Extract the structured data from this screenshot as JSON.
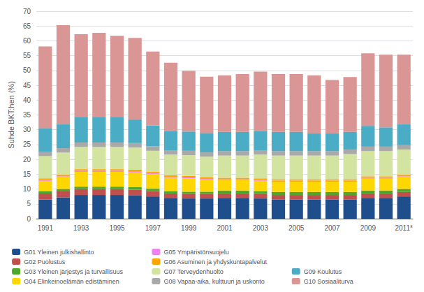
{
  "chart_data": {
    "type": "bar",
    "stacked": true,
    "grid": true,
    "legend": "bottom",
    "y_label": "Suhde BKT:hen (%)",
    "categories": [
      "1991",
      null,
      "1993",
      null,
      "1995",
      null,
      "1997",
      null,
      "1999",
      null,
      "2001",
      null,
      "2003",
      null,
      "2005",
      null,
      "2007",
      null,
      "2009",
      null,
      "2011*"
    ],
    "ylim": [
      0,
      70
    ],
    "yticks": [
      0,
      5,
      10,
      15,
      20,
      25,
      30,
      35,
      40,
      45,
      50,
      55,
      60,
      65,
      70
    ],
    "series": [
      {
        "name": "G01 Yleinen julkishallinto",
        "color": "#1F4E8C",
        "values": [
          6.5,
          7.2,
          8.0,
          8.0,
          8.0,
          7.8,
          7.5,
          7.0,
          6.8,
          6.8,
          7.0,
          7.0,
          6.8,
          6.5,
          6.5,
          6.5,
          6.5,
          6.5,
          7.0,
          7.0,
          7.5
        ]
      },
      {
        "name": "G02 Puolustus",
        "color": "#C0504D",
        "values": [
          2.0,
          2.0,
          2.0,
          2.0,
          2.0,
          2.0,
          1.8,
          1.5,
          1.5,
          1.5,
          1.5,
          1.5,
          1.5,
          1.5,
          1.5,
          1.5,
          1.5,
          1.5,
          1.5,
          1.5,
          1.5
        ]
      },
      {
        "name": "G03 Yleinen järjestys ja turvallisuus",
        "color": "#4EA72A",
        "values": [
          0.8,
          0.8,
          0.8,
          0.8,
          0.8,
          0.8,
          0.8,
          0.8,
          0.8,
          0.8,
          1.0,
          1.0,
          1.0,
          1.0,
          1.0,
          1.0,
          1.0,
          1.0,
          1.0,
          1.0,
          1.0
        ]
      },
      {
        "name": "G04 Elinkeinoelämän edistäminen",
        "color": "#FFD700",
        "values": [
          3.5,
          4.0,
          5.0,
          5.0,
          5.0,
          5.0,
          5.0,
          4.5,
          4.5,
          4.0,
          3.5,
          3.5,
          3.5,
          3.5,
          3.5,
          3.5,
          3.5,
          3.5,
          4.0,
          4.0,
          4.0
        ]
      },
      {
        "name": "G05 Ympäristönsuojelu",
        "color": "#EE82EE",
        "values": [
          0.3,
          0.3,
          0.4,
          0.4,
          0.4,
          0.4,
          0.3,
          0.3,
          0.3,
          0.3,
          0.3,
          0.3,
          0.3,
          0.3,
          0.3,
          0.3,
          0.3,
          0.3,
          0.3,
          0.3,
          0.3
        ]
      },
      {
        "name": "G06 Asuminen ja yhdyskuntapalvelut",
        "color": "#FFA500",
        "values": [
          0.5,
          0.5,
          0.5,
          0.5,
          0.5,
          0.5,
          0.5,
          0.5,
          0.5,
          0.5,
          0.5,
          0.5,
          0.5,
          0.5,
          0.5,
          0.5,
          0.5,
          0.5,
          0.5,
          0.5,
          0.5
        ]
      },
      {
        "name": "G07 Terveydenhuolto",
        "color": "#D2E4A0",
        "values": [
          7.5,
          7.5,
          7.5,
          7.5,
          7.5,
          7.5,
          7.0,
          7.0,
          7.0,
          7.0,
          7.5,
          7.5,
          8.0,
          8.0,
          8.0,
          8.0,
          8.0,
          8.5,
          8.5,
          8.5,
          8.5
        ]
      },
      {
        "name": "G08 Vapaa-aika, kulttuuri ja uskonto",
        "color": "#A9A9A9",
        "values": [
          1.5,
          1.5,
          1.5,
          1.5,
          1.5,
          1.5,
          1.5,
          1.5,
          1.5,
          1.5,
          1.5,
          1.5,
          1.5,
          1.5,
          1.5,
          1.5,
          1.5,
          1.5,
          1.5,
          1.5,
          1.5
        ]
      },
      {
        "name": "G09 Koulutus",
        "color": "#4BACC6",
        "values": [
          8.0,
          8.0,
          8.5,
          8.5,
          8.5,
          8.0,
          7.0,
          6.5,
          6.5,
          6.5,
          6.5,
          6.5,
          6.5,
          6.5,
          6.5,
          6.0,
          6.0,
          6.0,
          7.0,
          6.5,
          7.0
        ]
      },
      {
        "name": "G10 Sosiaaliturva",
        "color": "#D99694",
        "values": [
          27.5,
          33.5,
          28.0,
          28.5,
          27.5,
          27.5,
          25.0,
          23.0,
          20.5,
          19.0,
          19.0,
          19.5,
          20.0,
          19.5,
          19.5,
          19.5,
          18.0,
          18.5,
          24.5,
          24.5,
          23.5
        ]
      }
    ]
  }
}
